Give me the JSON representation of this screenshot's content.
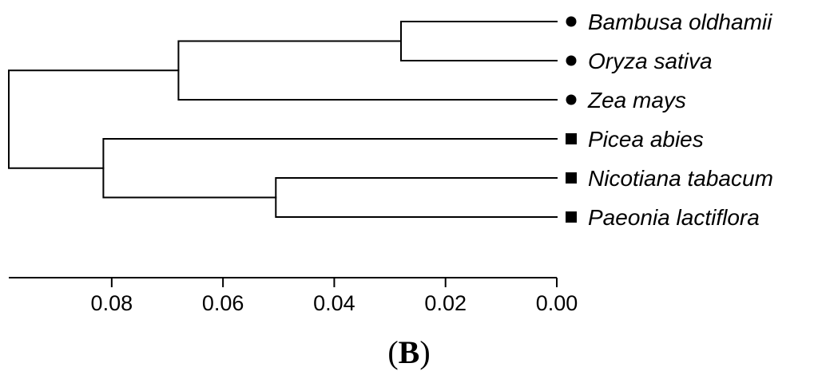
{
  "chart_data": {
    "type": "dendrogram",
    "x_axis": {
      "direction": "reversed",
      "ticks": [
        0.08,
        0.06,
        0.04,
        0.02,
        0.0
      ],
      "tick_labels": [
        "0.08",
        "0.06",
        "0.04",
        "0.02",
        "0.00"
      ],
      "range": [
        0.0985,
        0.0
      ]
    },
    "taxa": [
      {
        "name": "Bambusa oldhamii",
        "marker": "circle"
      },
      {
        "name": "Oryza sativa",
        "marker": "circle"
      },
      {
        "name": "Zea mays",
        "marker": "circle"
      },
      {
        "name": "Picea abies",
        "marker": "square"
      },
      {
        "name": "Nicotiana tabacum",
        "marker": "square"
      },
      {
        "name": "Paeonia lactiflora",
        "marker": "square"
      }
    ],
    "merges": [
      {
        "id": "n1",
        "children": [
          "Bambusa oldhamii",
          "Oryza sativa"
        ],
        "height": 0.028
      },
      {
        "id": "n2",
        "children": [
          "n1",
          "Zea mays"
        ],
        "height": 0.068
      },
      {
        "id": "n3",
        "children": [
          "Nicotiana tabacum",
          "Paeonia lactiflora"
        ],
        "height": 0.0505
      },
      {
        "id": "n4",
        "children": [
          "Picea abies",
          "n3"
        ],
        "height": 0.0815
      },
      {
        "id": "root",
        "children": [
          "n2",
          "n4"
        ],
        "height": 0.0985
      }
    ]
  },
  "panel": {
    "open": "(",
    "letter": "B",
    "close": ")"
  }
}
